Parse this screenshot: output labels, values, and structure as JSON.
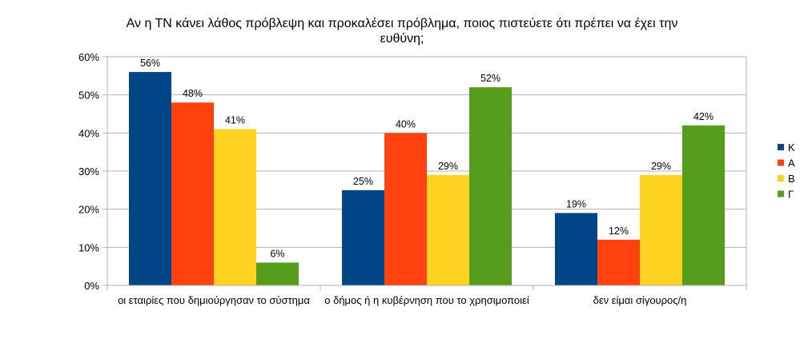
{
  "chart_data": {
    "type": "bar",
    "title_lines": [
      "Αν η ΤΝ κάνει λάθος πρόβλεψη και προκαλέσει πρόβλημα, ποιος πιστεύετε ότι πρέπει να έχει την",
      "ευθύνη;"
    ],
    "xlabel": "",
    "ylabel": "",
    "ylim": [
      0,
      60
    ],
    "yticks": [
      0,
      10,
      20,
      30,
      40,
      50,
      60
    ],
    "ytick_labels": [
      "0%",
      "10%",
      "20%",
      "30%",
      "40%",
      "50%",
      "60%"
    ],
    "grid": true,
    "legend_position": "right",
    "categories": [
      "οι εταιρίες που δημιούργησαν το σύστημα",
      "ο δήμος ή η κυβέρνηση που το χρησιμοποιεί",
      "δεν είμαι σίγουρος/η"
    ],
    "series": [
      {
        "name": "Κ",
        "color": "#004586",
        "values": [
          56,
          25,
          19
        ],
        "labels": [
          "56%",
          "25%",
          "19%"
        ]
      },
      {
        "name": "Α",
        "color": "#ff420e",
        "values": [
          48,
          40,
          12
        ],
        "labels": [
          "48%",
          "40%",
          "12%"
        ]
      },
      {
        "name": "Β",
        "color": "#ffd320",
        "values": [
          41,
          29,
          29
        ],
        "labels": [
          "41%",
          "29%",
          "29%"
        ]
      },
      {
        "name": "Γ",
        "color": "#579d1c",
        "values": [
          6,
          52,
          42
        ],
        "labels": [
          "6%",
          "52%",
          "42%"
        ]
      }
    ]
  }
}
